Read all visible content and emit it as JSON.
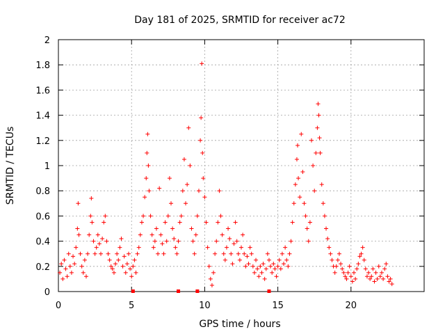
{
  "chart_data": {
    "type": "scatter",
    "title": "Day 181 of 2025, SRMTID for receiver ac72",
    "xlabel": "GPS time / hours",
    "ylabel": "SRMTID / TECUs",
    "xlim": [
      0,
      25
    ],
    "ylim": [
      0,
      2
    ],
    "xticks": [
      0,
      5,
      10,
      15,
      20
    ],
    "yticks": [
      0,
      0.2,
      0.4,
      0.6,
      0.8,
      1,
      1.2,
      1.4,
      1.6,
      1.8,
      2
    ],
    "xtick_labels": [
      "0",
      "5",
      "10",
      "15",
      "20"
    ],
    "ytick_labels": [
      "0",
      "0.2",
      "0.4",
      "0.6",
      "0.8",
      "1",
      "1.2",
      "1.4",
      "1.6",
      "1.8",
      "2"
    ],
    "grid": true,
    "marker": "plus",
    "series": [
      {
        "name": "SRMTID",
        "color": "#ff0000",
        "points": [
          [
            0.1,
            0.15
          ],
          [
            0.2,
            0.22
          ],
          [
            0.3,
            0.1
          ],
          [
            0.4,
            0.25
          ],
          [
            0.5,
            0.18
          ],
          [
            0.6,
            0.12
          ],
          [
            0.7,
            0.3
          ],
          [
            0.8,
            0.2
          ],
          [
            0.9,
            0.15
          ],
          [
            1.0,
            0.28
          ],
          [
            1.1,
            0.22
          ],
          [
            1.2,
            0.35
          ],
          [
            1.3,
            0.5
          ],
          [
            1.35,
            0.7
          ],
          [
            1.4,
            0.45
          ],
          [
            1.5,
            0.3
          ],
          [
            1.6,
            0.2
          ],
          [
            1.7,
            0.15
          ],
          [
            1.8,
            0.25
          ],
          [
            1.9,
            0.12
          ],
          [
            2.0,
            0.3
          ],
          [
            2.1,
            0.45
          ],
          [
            2.2,
            0.6
          ],
          [
            2.25,
            0.74
          ],
          [
            2.3,
            0.55
          ],
          [
            2.4,
            0.4
          ],
          [
            2.5,
            0.3
          ],
          [
            2.6,
            0.35
          ],
          [
            2.7,
            0.45
          ],
          [
            2.8,
            0.38
          ],
          [
            2.9,
            0.3
          ],
          [
            3.0,
            0.42
          ],
          [
            3.1,
            0.55
          ],
          [
            3.2,
            0.6
          ],
          [
            3.3,
            0.4
          ],
          [
            3.4,
            0.3
          ],
          [
            3.5,
            0.25
          ],
          [
            3.6,
            0.2
          ],
          [
            3.7,
            0.18
          ],
          [
            3.8,
            0.15
          ],
          [
            3.9,
            0.22
          ],
          [
            4.0,
            0.3
          ],
          [
            4.1,
            0.25
          ],
          [
            4.2,
            0.35
          ],
          [
            4.3,
            0.42
          ],
          [
            4.4,
            0.2
          ],
          [
            4.5,
            0.28
          ],
          [
            4.6,
            0.15
          ],
          [
            4.7,
            0.22
          ],
          [
            4.8,
            0.3
          ],
          [
            4.9,
            0.18
          ],
          [
            5.0,
            0.12
          ],
          [
            5.1,
            0.2
          ],
          [
            5.2,
            0.25
          ],
          [
            5.3,
            0.15
          ],
          [
            5.4,
            0.3
          ],
          [
            5.5,
            0.35
          ],
          [
            5.6,
            0.45
          ],
          [
            5.7,
            0.55
          ],
          [
            5.8,
            0.6
          ],
          [
            5.9,
            0.75
          ],
          [
            6.0,
            0.9
          ],
          [
            6.05,
            1.1
          ],
          [
            6.1,
            1.25
          ],
          [
            6.15,
            1.0
          ],
          [
            6.2,
            0.8
          ],
          [
            6.3,
            0.6
          ],
          [
            6.4,
            0.45
          ],
          [
            6.5,
            0.35
          ],
          [
            6.6,
            0.4
          ],
          [
            6.7,
            0.5
          ],
          [
            6.8,
            0.3
          ],
          [
            6.9,
            0.82
          ],
          [
            7.0,
            0.45
          ],
          [
            7.1,
            0.38
          ],
          [
            7.2,
            0.3
          ],
          [
            7.3,
            0.55
          ],
          [
            7.4,
            0.4
          ],
          [
            7.5,
            0.6
          ],
          [
            7.6,
            0.9
          ],
          [
            7.7,
            0.7
          ],
          [
            7.8,
            0.5
          ],
          [
            7.9,
            0.42
          ],
          [
            8.0,
            0.35
          ],
          [
            8.1,
            0.3
          ],
          [
            8.2,
            0.4
          ],
          [
            8.3,
            0.55
          ],
          [
            8.4,
            0.6
          ],
          [
            8.5,
            0.8
          ],
          [
            8.6,
            1.05
          ],
          [
            8.7,
            0.7
          ],
          [
            8.8,
            0.85
          ],
          [
            8.9,
            1.3
          ],
          [
            9.0,
            1.0
          ],
          [
            9.1,
            0.5
          ],
          [
            9.2,
            0.4
          ],
          [
            9.3,
            0.3
          ],
          [
            9.4,
            0.45
          ],
          [
            9.5,
            0.6
          ],
          [
            9.6,
            0.8
          ],
          [
            9.7,
            1.2
          ],
          [
            9.75,
            1.38
          ],
          [
            9.8,
            1.81
          ],
          [
            9.85,
            1.1
          ],
          [
            9.9,
            0.9
          ],
          [
            10.0,
            0.75
          ],
          [
            10.1,
            0.55
          ],
          [
            10.2,
            0.35
          ],
          [
            10.3,
            0.2
          ],
          [
            10.4,
            0.1
          ],
          [
            10.5,
            0.05
          ],
          [
            10.6,
            0.15
          ],
          [
            10.7,
            0.3
          ],
          [
            10.8,
            0.4
          ],
          [
            10.9,
            0.55
          ],
          [
            11.0,
            0.8
          ],
          [
            11.1,
            0.6
          ],
          [
            11.2,
            0.45
          ],
          [
            11.3,
            0.3
          ],
          [
            11.4,
            0.25
          ],
          [
            11.5,
            0.35
          ],
          [
            11.6,
            0.5
          ],
          [
            11.7,
            0.42
          ],
          [
            11.8,
            0.3
          ],
          [
            11.9,
            0.22
          ],
          [
            12.0,
            0.38
          ],
          [
            12.1,
            0.55
          ],
          [
            12.2,
            0.4
          ],
          [
            12.3,
            0.3
          ],
          [
            12.4,
            0.25
          ],
          [
            12.5,
            0.35
          ],
          [
            12.6,
            0.45
          ],
          [
            12.7,
            0.3
          ],
          [
            12.8,
            0.2
          ],
          [
            12.9,
            0.28
          ],
          [
            13.0,
            0.22
          ],
          [
            13.1,
            0.35
          ],
          [
            13.2,
            0.3
          ],
          [
            13.3,
            0.2
          ],
          [
            13.4,
            0.15
          ],
          [
            13.5,
            0.25
          ],
          [
            13.6,
            0.18
          ],
          [
            13.7,
            0.12
          ],
          [
            13.8,
            0.2
          ],
          [
            13.9,
            0.15
          ],
          [
            14.0,
            0.22
          ],
          [
            14.1,
            0.1
          ],
          [
            14.2,
            0.18
          ],
          [
            14.3,
            0.3
          ],
          [
            14.4,
            0.25
          ],
          [
            14.5,
            0.2
          ],
          [
            14.6,
            0.15
          ],
          [
            14.7,
            0.22
          ],
          [
            14.8,
            0.18
          ],
          [
            14.9,
            0.12
          ],
          [
            15.0,
            0.2
          ],
          [
            15.1,
            0.25
          ],
          [
            15.2,
            0.18
          ],
          [
            15.3,
            0.3
          ],
          [
            15.4,
            0.22
          ],
          [
            15.5,
            0.35
          ],
          [
            15.6,
            0.25
          ],
          [
            15.7,
            0.2
          ],
          [
            15.8,
            0.3
          ],
          [
            15.9,
            0.4
          ],
          [
            16.0,
            0.55
          ],
          [
            16.1,
            0.7
          ],
          [
            16.2,
            0.85
          ],
          [
            16.3,
            1.05
          ],
          [
            16.35,
            1.16
          ],
          [
            16.4,
            0.9
          ],
          [
            16.5,
            0.75
          ],
          [
            16.6,
            1.25
          ],
          [
            16.7,
            0.95
          ],
          [
            16.8,
            0.7
          ],
          [
            16.9,
            0.6
          ],
          [
            17.0,
            0.5
          ],
          [
            17.1,
            0.4
          ],
          [
            17.2,
            0.55
          ],
          [
            17.3,
            1.2
          ],
          [
            17.4,
            1.0
          ],
          [
            17.5,
            0.8
          ],
          [
            17.6,
            1.1
          ],
          [
            17.7,
            1.3
          ],
          [
            17.75,
            1.49
          ],
          [
            17.8,
            1.4
          ],
          [
            17.85,
            1.22
          ],
          [
            17.9,
            1.1
          ],
          [
            18.0,
            0.85
          ],
          [
            18.1,
            0.7
          ],
          [
            18.2,
            0.6
          ],
          [
            18.3,
            0.5
          ],
          [
            18.4,
            0.42
          ],
          [
            18.5,
            0.35
          ],
          [
            18.6,
            0.3
          ],
          [
            18.7,
            0.25
          ],
          [
            18.8,
            0.2
          ],
          [
            18.9,
            0.15
          ],
          [
            19.0,
            0.2
          ],
          [
            19.1,
            0.25
          ],
          [
            19.2,
            0.3
          ],
          [
            19.3,
            0.22
          ],
          [
            19.4,
            0.18
          ],
          [
            19.5,
            0.15
          ],
          [
            19.6,
            0.12
          ],
          [
            19.7,
            0.1
          ],
          [
            19.8,
            0.15
          ],
          [
            19.9,
            0.2
          ],
          [
            20.0,
            0.12
          ],
          [
            20.1,
            0.08
          ],
          [
            20.2,
            0.15
          ],
          [
            20.3,
            0.1
          ],
          [
            20.4,
            0.18
          ],
          [
            20.5,
            0.22
          ],
          [
            20.6,
            0.28
          ],
          [
            20.7,
            0.3
          ],
          [
            20.8,
            0.35
          ],
          [
            20.9,
            0.25
          ],
          [
            21.0,
            0.18
          ],
          [
            21.1,
            0.12
          ],
          [
            21.2,
            0.15
          ],
          [
            21.3,
            0.1
          ],
          [
            21.4,
            0.12
          ],
          [
            21.5,
            0.18
          ],
          [
            21.6,
            0.08
          ],
          [
            21.7,
            0.15
          ],
          [
            21.8,
            0.1
          ],
          [
            21.9,
            0.2
          ],
          [
            22.0,
            0.12
          ],
          [
            22.1,
            0.15
          ],
          [
            22.2,
            0.1
          ],
          [
            22.3,
            0.18
          ],
          [
            22.4,
            0.22
          ],
          [
            22.5,
            0.12
          ],
          [
            22.6,
            0.08
          ],
          [
            22.7,
            0.1
          ],
          [
            22.8,
            0.06
          ]
        ]
      }
    ],
    "bottom_markers": [
      5.1,
      8.2,
      9.5,
      14.4
    ]
  }
}
